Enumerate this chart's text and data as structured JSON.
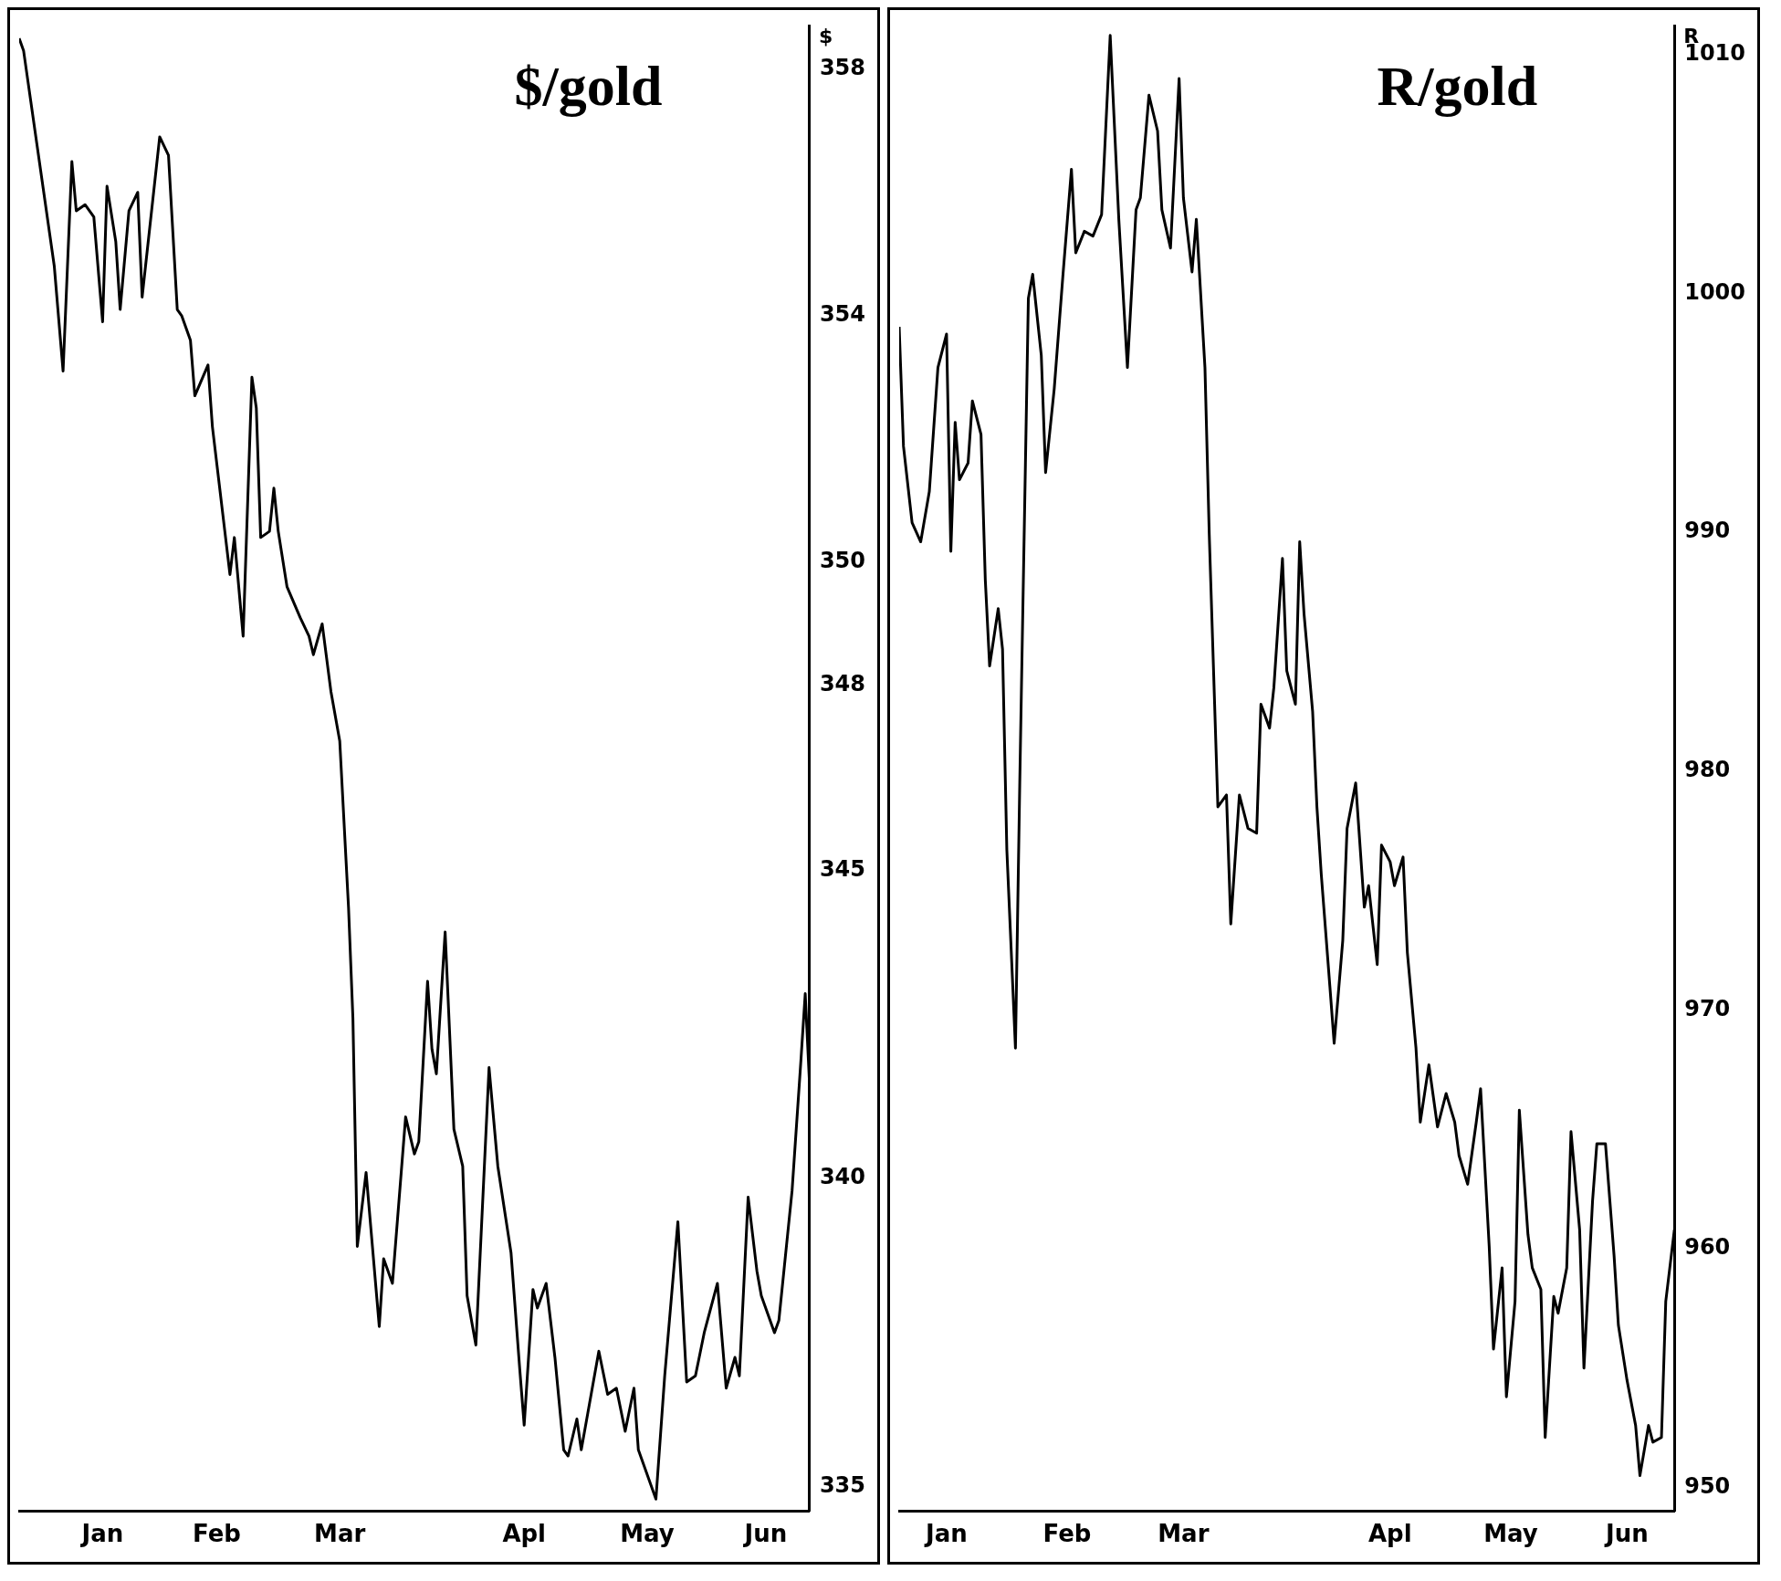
{
  "chart_data": [
    {
      "type": "line",
      "title": "$/gold",
      "ylabel": "$",
      "color": "#000000",
      "x": [
        "--01-01",
        "--01-02",
        "--01-05",
        "--01-09",
        "--01-11",
        "--01-13",
        "--01-14",
        "--01-16",
        "--01-18",
        "--01-20",
        "--01-21",
        "--01-23",
        "--01-24",
        "--01-26",
        "--01-28",
        "--01-29",
        "--01-31",
        "--02-02",
        "--02-04",
        "--02-06",
        "--02-07",
        "--02-09",
        "--02-10",
        "--02-13",
        "--02-14",
        "--02-17",
        "--02-18",
        "--02-19",
        "--02-21",
        "--02-23",
        "--02-24",
        "--02-25",
        "--02-27",
        "--02-28",
        "--03-01",
        "--03-03",
        "--03-06",
        "--03-08",
        "--03-09",
        "--03-11",
        "--03-13",
        "--03-15",
        "--03-17",
        "--03-18",
        "--03-19",
        "--03-21",
        "--03-24",
        "--03-25",
        "--03-27",
        "--03-30",
        "--04-01",
        "--04-02",
        "--04-04",
        "--04-05",
        "--04-06",
        "--04-08",
        "--04-10",
        "--04-12",
        "--04-13",
        "--04-15",
        "--04-18",
        "--04-20",
        "--04-23",
        "--04-25",
        "--04-26",
        "--04-28",
        "--04-29",
        "--05-01",
        "--05-03",
        "--05-05",
        "--05-06",
        "--05-08",
        "--05-09",
        "--05-13",
        "--05-15",
        "--05-17",
        "--05-19",
        "--05-21",
        "--05-22",
        "--05-26",
        "--05-28",
        "--05-31",
        "--06-02",
        "--06-04",
        "--06-06",
        "--06-09",
        "--06-11",
        "--06-13",
        "--06-14",
        "--06-16",
        "--06-18",
        "--06-19",
        "--06-22",
        "--06-23",
        "--06-26",
        "--06-28",
        "--06-29",
        "--06-30"
      ],
      "values": [
        358.5,
        358.3,
        356.8,
        354.8,
        353.1,
        356.5,
        355.7,
        355.8,
        355.6,
        353.9,
        356.1,
        355.2,
        354.1,
        355.7,
        356.0,
        354.3,
        355.6,
        356.9,
        356.6,
        354.1,
        354.0,
        353.6,
        352.7,
        353.2,
        352.2,
        350.4,
        349.8,
        350.4,
        348.8,
        353.0,
        352.5,
        350.4,
        350.5,
        351.2,
        350.5,
        349.6,
        349.1,
        348.8,
        348.5,
        349.0,
        347.9,
        347.1,
        344.4,
        342.6,
        338.9,
        340.1,
        337.6,
        338.7,
        338.3,
        341.0,
        340.4,
        340.6,
        343.2,
        342.1,
        341.7,
        344.0,
        340.8,
        340.2,
        338.1,
        337.3,
        341.8,
        340.2,
        338.8,
        336.9,
        336.0,
        338.2,
        337.9,
        338.3,
        337.1,
        335.6,
        335.5,
        336.1,
        335.6,
        337.2,
        336.5,
        336.6,
        335.9,
        336.6,
        335.6,
        334.8,
        336.8,
        339.3,
        336.7,
        336.8,
        337.5,
        338.3,
        336.6,
        337.1,
        336.8,
        339.7,
        338.5,
        338.1,
        337.5,
        337.7,
        339.8,
        341.9,
        343.0,
        341.5
      ],
      "xlim": [
        "--01-01",
        "--06-30"
      ],
      "xticks": [
        {
          "value": "--01-20",
          "label": "Jan"
        },
        {
          "value": "--02-15",
          "label": "Feb"
        },
        {
          "value": "--03-15",
          "label": "Mar"
        },
        {
          "value": "--04-26",
          "label": "Apl"
        },
        {
          "value": "--05-24",
          "label": "May"
        },
        {
          "value": "--06-20",
          "label": "Jun"
        }
      ],
      "ylim": [
        334.6,
        358.7
      ],
      "yticks": [
        335,
        340,
        345,
        348,
        350,
        354,
        358
      ]
    },
    {
      "type": "line",
      "title": "R/gold",
      "ylabel": "R",
      "color": "#000000",
      "x": [
        "--01-01",
        "--01-02",
        "--01-04",
        "--01-06",
        "--01-08",
        "--01-10",
        "--01-12",
        "--01-13",
        "--01-14",
        "--01-15",
        "--01-17",
        "--01-18",
        "--01-20",
        "--01-21",
        "--01-22",
        "--01-24",
        "--01-25",
        "--01-26",
        "--01-28",
        "--01-29",
        "--01-31",
        "--02-01",
        "--02-03",
        "--02-04",
        "--02-06",
        "--02-08",
        "--02-10",
        "--02-11",
        "--02-13",
        "--02-15",
        "--02-17",
        "--02-19",
        "--02-21",
        "--02-23",
        "--02-25",
        "--02-26",
        "--02-28",
        "--03-02",
        "--03-03",
        "--03-05",
        "--03-07",
        "--03-08",
        "--03-10",
        "--03-11",
        "--03-13",
        "--03-14",
        "--03-16",
        "--03-18",
        "--03-19",
        "--03-21",
        "--03-23",
        "--03-25",
        "--03-26",
        "--03-28",
        "--03-29",
        "--03-31",
        "--04-01",
        "--04-03",
        "--04-04",
        "--04-05",
        "--04-07",
        "--04-08",
        "--04-09",
        "--04-11",
        "--04-12",
        "--04-14",
        "--04-15",
        "--04-17",
        "--04-19",
        "--04-20",
        "--04-22",
        "--04-23",
        "--04-25",
        "--04-26",
        "--04-28",
        "--04-29",
        "--05-01",
        "--05-02",
        "--05-04",
        "--05-06",
        "--05-08",
        "--05-10",
        "--05-11",
        "--05-13",
        "--05-15",
        "--05-16",
        "--05-18",
        "--05-19",
        "--05-21",
        "--05-22",
        "--05-24",
        "--05-25",
        "--05-27",
        "--05-28",
        "--05-30",
        "--05-31",
        "--06-02",
        "--06-03",
        "--06-05",
        "--06-06",
        "--06-08",
        "--06-09",
        "--06-11",
        "--06-12",
        "--06-14",
        "--06-16",
        "--06-17",
        "--06-19",
        "--06-21",
        "--06-22",
        "--06-24",
        "--06-25",
        "--06-27",
        "--06-28",
        "--06-30"
      ],
      "values": [
        998.6,
        993.6,
        990.4,
        989.6,
        991.7,
        996.9,
        998.3,
        989.2,
        994.6,
        992.2,
        992.9,
        995.5,
        994.1,
        988.0,
        984.4,
        986.8,
        985.1,
        976.7,
        968.4,
        979.5,
        999.8,
        1000.8,
        997.4,
        992.5,
        996.0,
        1000.7,
        1005.2,
        1001.7,
        1002.6,
        1002.4,
        1003.3,
        1010.8,
        1003.1,
        996.9,
        1003.5,
        1004.0,
        1008.3,
        1006.8,
        1003.5,
        1001.9,
        1009.0,
        1004.0,
        1000.9,
        1003.1,
        996.9,
        989.9,
        978.5,
        979.0,
        973.6,
        979.0,
        977.6,
        977.4,
        982.8,
        981.8,
        983.5,
        988.9,
        984.2,
        982.8,
        989.6,
        986.6,
        982.5,
        978.5,
        975.7,
        971.0,
        968.6,
        972.9,
        977.6,
        979.5,
        974.3,
        975.2,
        971.9,
        976.9,
        976.2,
        975.2,
        976.4,
        972.4,
        968.4,
        965.3,
        967.7,
        965.1,
        966.5,
        965.3,
        963.9,
        962.7,
        965.3,
        966.7,
        960.1,
        955.8,
        959.2,
        953.8,
        957.8,
        965.8,
        960.6,
        959.2,
        958.3,
        952.1,
        958.0,
        957.3,
        959.2,
        964.9,
        960.8,
        955.0,
        962.0,
        964.4,
        964.4,
        959.7,
        956.8,
        954.5,
        952.6,
        950.5,
        952.6,
        951.9,
        952.1,
        957.8,
        960.8
      ],
      "xlim": [
        "--01-01",
        "--06-30"
      ],
      "xticks": [
        {
          "value": "--01-12",
          "label": "Jan"
        },
        {
          "value": "--02-09",
          "label": "Feb"
        },
        {
          "value": "--03-08",
          "label": "Mar"
        },
        {
          "value": "--04-25",
          "label": "Apl"
        },
        {
          "value": "--05-23",
          "label": "May"
        },
        {
          "value": "--06-19",
          "label": "Jun"
        }
      ],
      "ylim": [
        949,
        1011.2
      ],
      "yticks": [
        950,
        960,
        970,
        980,
        990,
        1000,
        1010
      ]
    }
  ]
}
